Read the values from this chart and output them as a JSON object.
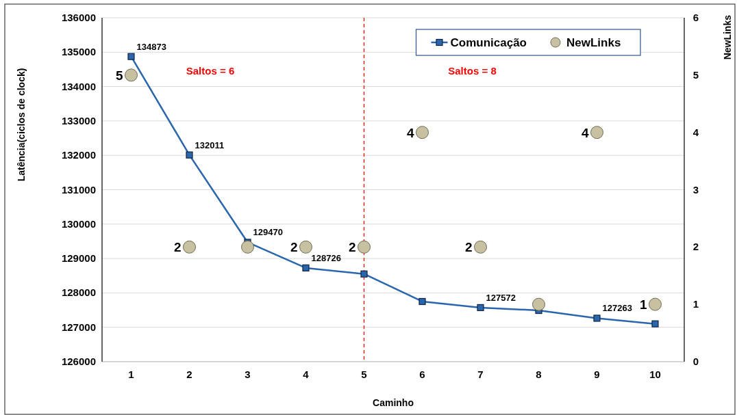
{
  "chart_data": {
    "type": "line",
    "xlabel": "Caminho",
    "ylabel": "Latência(ciclos de clock)",
    "y2label": "NewLinks",
    "x": [
      1,
      2,
      3,
      4,
      5,
      6,
      7,
      8,
      9,
      10
    ],
    "xlim": [
      0.5,
      10.5
    ],
    "xticks": [
      1,
      2,
      3,
      4,
      5,
      6,
      7,
      8,
      9,
      10
    ],
    "ylim": [
      126000,
      136000
    ],
    "yticks": [
      126000,
      127000,
      128000,
      129000,
      130000,
      131000,
      132000,
      133000,
      134000,
      135000,
      136000
    ],
    "y2lim": [
      0,
      6
    ],
    "y2ticks": [
      0,
      1,
      2,
      3,
      4,
      5,
      6
    ],
    "grid": "y",
    "legend": "top right",
    "series": [
      {
        "name": "Comunicação",
        "color": "#2a66ad",
        "marker": "square",
        "values": [
          134873,
          132011,
          129470,
          128726,
          128550,
          127750,
          127572,
          127490,
          127263,
          127100
        ],
        "value_labels": [
          "134873",
          "132011",
          "129470",
          "128726",
          null,
          null,
          "127572",
          null,
          "127263",
          null
        ]
      },
      {
        "name": "NewLinks",
        "type": "scatter",
        "axis": "y2",
        "color": "#c8c1a1",
        "marker": "circle",
        "values": [
          5,
          2,
          2,
          2,
          2,
          4,
          2,
          1,
          4,
          1
        ],
        "value_labels": [
          "5",
          "2",
          null,
          "2",
          "2",
          "4",
          "2",
          null,
          "4",
          "1"
        ]
      }
    ],
    "ref_lines": [
      {
        "axis": "x",
        "value": 5,
        "color": "#ff0000",
        "line_style": "dashed"
      }
    ],
    "annotations": [
      "Saltos = 6",
      "Saltos = 8"
    ]
  }
}
